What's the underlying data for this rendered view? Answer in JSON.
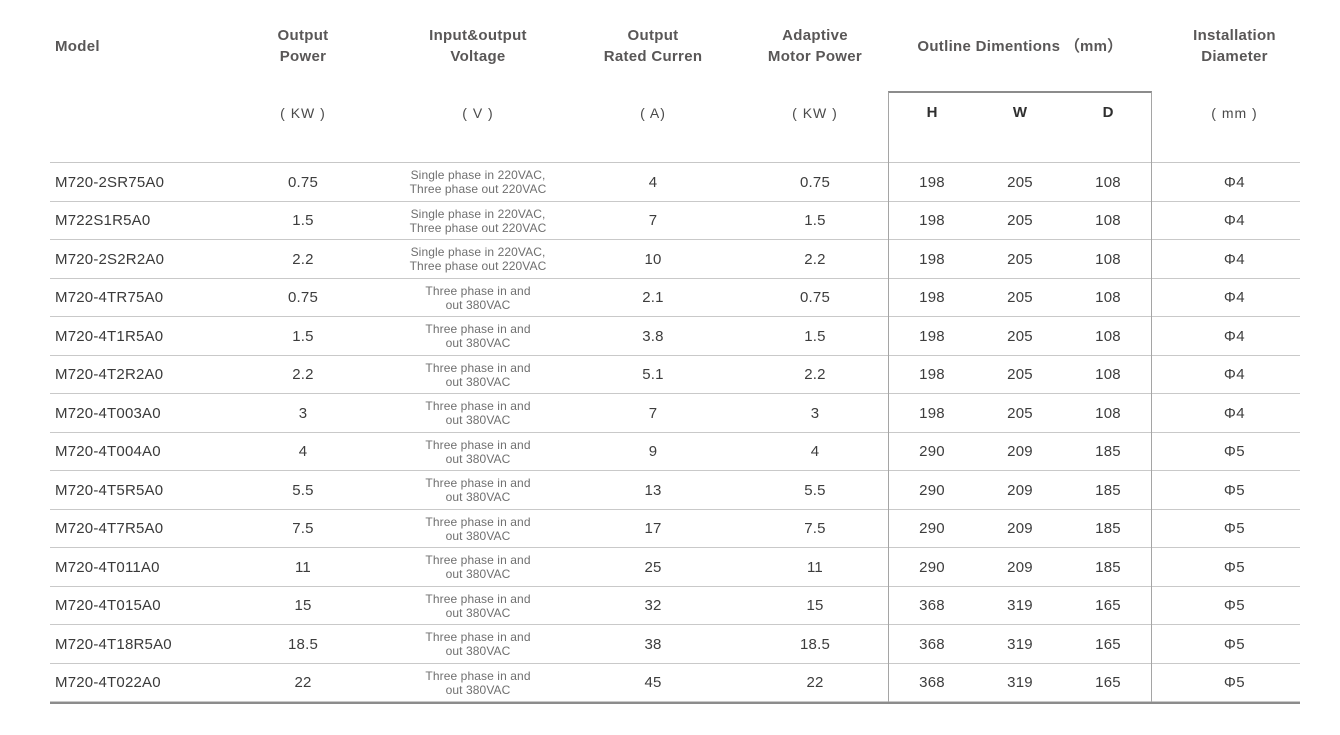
{
  "page": {
    "background": "#ffffff"
  },
  "colors": {
    "header_text": "#595757",
    "body_text": "#3d3d3d",
    "voltage_text": "#6f6f6f",
    "rule_strong": "#8c8c8c",
    "rule_light": "#c9c9c9",
    "box_border": "#a5a5a5"
  },
  "table": {
    "headers": {
      "model": "Model",
      "output_power": "Output\nPower",
      "voltage": "Input&output\nVoltage",
      "current": "Output\nRated Curren",
      "motor": "Adaptive\nMotor Power",
      "outline": "Outline Dimentions （mm）",
      "installation": "Installation\nDiameter"
    },
    "units": {
      "power": "( KW )",
      "voltage": "( V )",
      "current": "( A)",
      "motor": "( KW )",
      "h": "H",
      "w": "W",
      "d": "D",
      "installation": "( mm )"
    },
    "rows": [
      {
        "model": "M720-2SR75A0",
        "power": "0.75",
        "voltage1": "Single phase in 220VAC,",
        "voltage2": "Three phase out 220VAC",
        "current": "4",
        "motor": "0.75",
        "h": "198",
        "w": "205",
        "d": "108",
        "dia": "Φ4"
      },
      {
        "model": "M722S1R5A0",
        "power": "1.5",
        "voltage1": "Single phase in 220VAC,",
        "voltage2": "Three phase out 220VAC",
        "current": "7",
        "motor": "1.5",
        "h": "198",
        "w": "205",
        "d": "108",
        "dia": "Φ4"
      },
      {
        "model": "M720-2S2R2A0",
        "power": "2.2",
        "voltage1": "Single phase in 220VAC,",
        "voltage2": "Three phase out 220VAC",
        "current": "10",
        "motor": "2.2",
        "h": "198",
        "w": "205",
        "d": "108",
        "dia": "Φ4"
      },
      {
        "model": "M720-4TR75A0",
        "power": "0.75",
        "voltage1": "Three phase in and",
        "voltage2": "out 380VAC",
        "current": "2.1",
        "motor": "0.75",
        "h": "198",
        "w": "205",
        "d": "108",
        "dia": "Φ4"
      },
      {
        "model": "M720-4T1R5A0",
        "power": "1.5",
        "voltage1": "Three phase in and",
        "voltage2": "out 380VAC",
        "current": "3.8",
        "motor": "1.5",
        "h": "198",
        "w": "205",
        "d": "108",
        "dia": "Φ4"
      },
      {
        "model": "M720-4T2R2A0",
        "power": "2.2",
        "voltage1": "Three phase in and",
        "voltage2": "out 380VAC",
        "current": "5.1",
        "motor": "2.2",
        "h": "198",
        "w": "205",
        "d": "108",
        "dia": "Φ4"
      },
      {
        "model": "M720-4T003A0",
        "power": "3",
        "voltage1": "Three phase in and",
        "voltage2": "out 380VAC",
        "current": "7",
        "motor": "3",
        "h": "198",
        "w": "205",
        "d": "108",
        "dia": "Φ4"
      },
      {
        "model": "M720-4T004A0",
        "power": "4",
        "voltage1": "Three phase in and",
        "voltage2": "out 380VAC",
        "current": "9",
        "motor": "4",
        "h": "290",
        "w": "209",
        "d": "185",
        "dia": "Φ5"
      },
      {
        "model": "M720-4T5R5A0",
        "power": "5.5",
        "voltage1": "Three phase in and",
        "voltage2": "out 380VAC",
        "current": "13",
        "motor": "5.5",
        "h": "290",
        "w": "209",
        "d": "185",
        "dia": "Φ5"
      },
      {
        "model": "M720-4T7R5A0",
        "power": "7.5",
        "voltage1": "Three phase in and",
        "voltage2": "out 380VAC",
        "current": "17",
        "motor": "7.5",
        "h": "290",
        "w": "209",
        "d": "185",
        "dia": "Φ5"
      },
      {
        "model": "M720-4T011A0",
        "power": "11",
        "voltage1": "Three phase in and",
        "voltage2": "out 380VAC",
        "current": "25",
        "motor": "11",
        "h": "290",
        "w": "209",
        "d": "185",
        "dia": "Φ5"
      },
      {
        "model": "M720-4T015A0",
        "power": "15",
        "voltage1": "Three phase in and",
        "voltage2": "out 380VAC",
        "current": "32",
        "motor": "15",
        "h": "368",
        "w": "319",
        "d": "165",
        "dia": "Φ5"
      },
      {
        "model": "M720-4T18R5A0",
        "power": "18.5",
        "voltage1": "Three phase in and",
        "voltage2": "out 380VAC",
        "current": "38",
        "motor": "18.5",
        "h": "368",
        "w": "319",
        "d": "165",
        "dia": "Φ5"
      },
      {
        "model": "M720-4T022A0",
        "power": "22",
        "voltage1": "Three phase in and",
        "voltage2": "out 380VAC",
        "current": "45",
        "motor": "22",
        "h": "368",
        "w": "319",
        "d": "165",
        "dia": "Φ5"
      }
    ]
  }
}
